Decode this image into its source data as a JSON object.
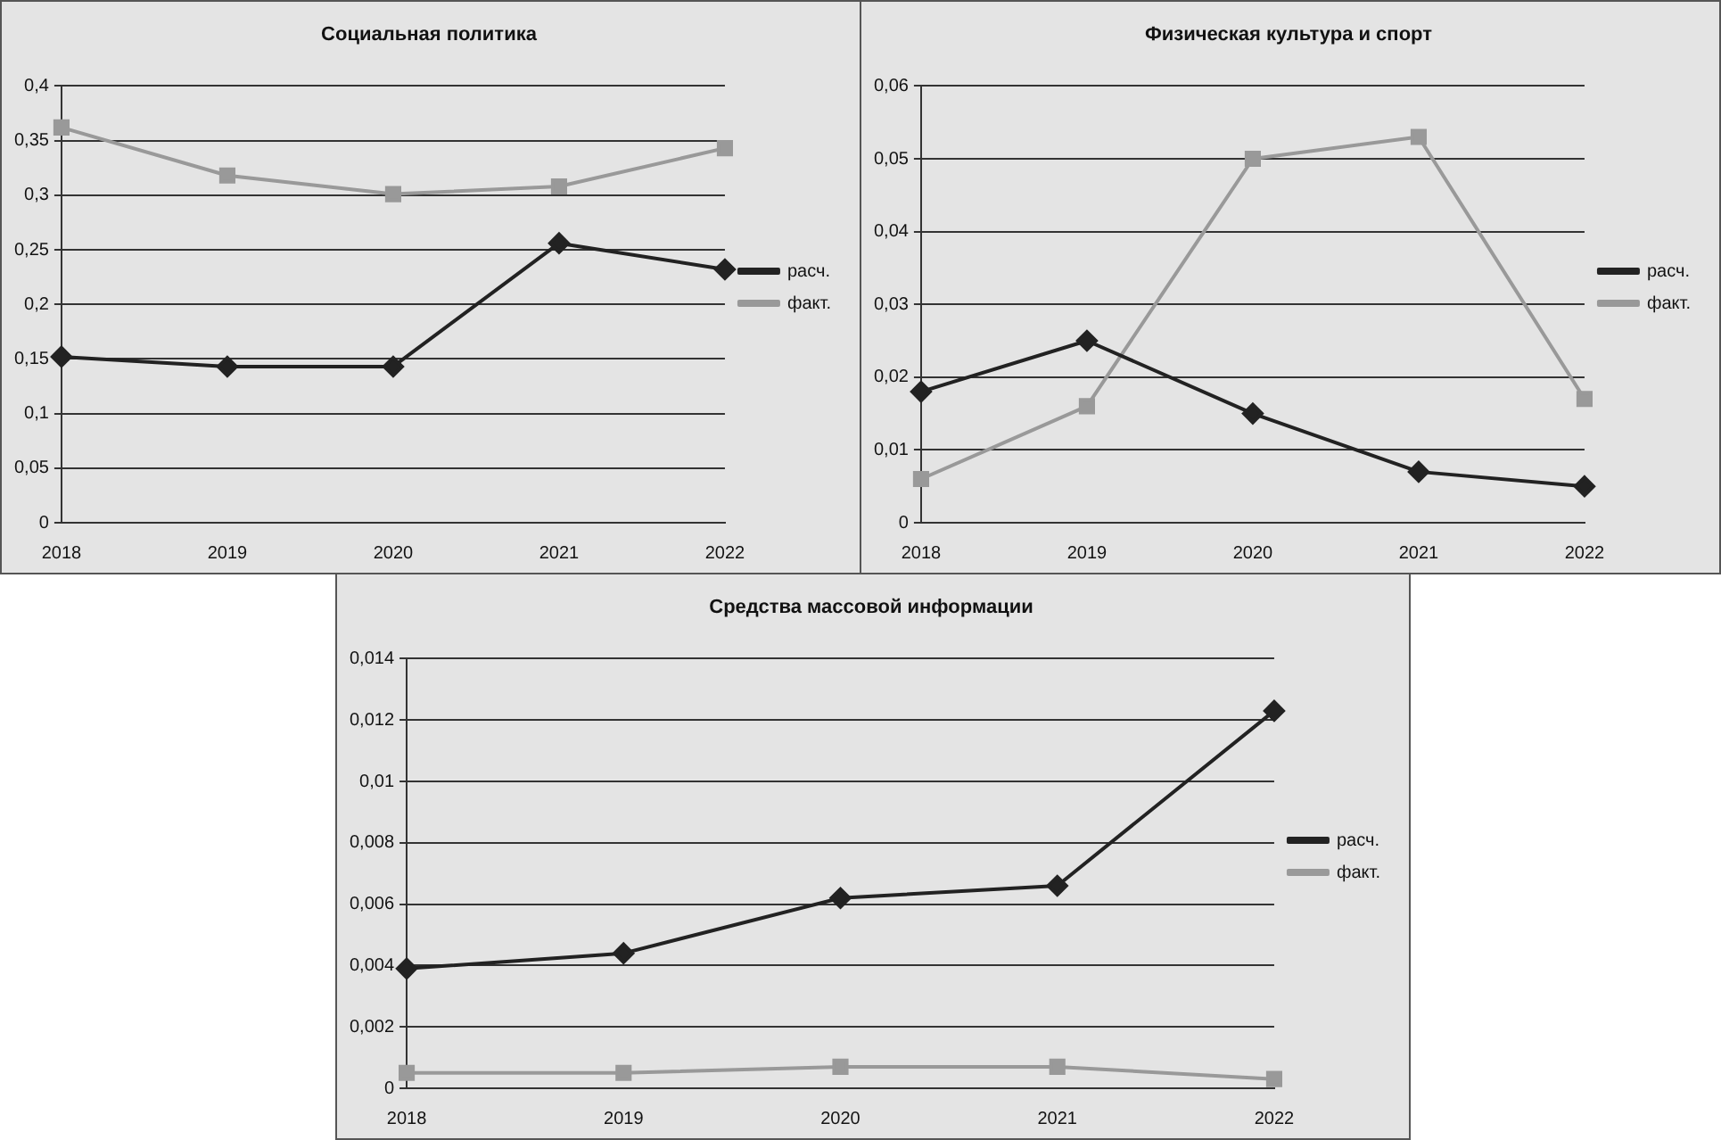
{
  "chart_data": [
    {
      "type": "line",
      "title": "Социальная политика",
      "categories": [
        "2018",
        "2019",
        "2020",
        "2021",
        "2022"
      ],
      "series": [
        {
          "name": "расч.",
          "color": "#222222",
          "marker": "diamond",
          "values": [
            0.152,
            0.143,
            0.143,
            0.256,
            0.232
          ]
        },
        {
          "name": "факт.",
          "color": "#999999",
          "marker": "square",
          "values": [
            0.362,
            0.318,
            0.301,
            0.308,
            0.343
          ]
        }
      ],
      "ylim": [
        0,
        0.4
      ],
      "yticks": [
        {
          "value": 0,
          "label": "0"
        },
        {
          "value": 0.05,
          "label": "0,05"
        },
        {
          "value": 0.1,
          "label": "0,1"
        },
        {
          "value": 0.15,
          "label": "0,15"
        },
        {
          "value": 0.2,
          "label": "0,2"
        },
        {
          "value": 0.25,
          "label": "0,25"
        },
        {
          "value": 0.3,
          "label": "0,3"
        },
        {
          "value": 0.35,
          "label": "0,35"
        },
        {
          "value": 0.4,
          "label": "0,4"
        }
      ],
      "grid": "y",
      "legend": "right"
    },
    {
      "type": "line",
      "title": "Физическая культура и спорт",
      "categories": [
        "2018",
        "2019",
        "2020",
        "2021",
        "2022"
      ],
      "series": [
        {
          "name": "расч.",
          "color": "#222222",
          "marker": "diamond",
          "values": [
            0.018,
            0.025,
            0.015,
            0.007,
            0.005
          ]
        },
        {
          "name": "факт.",
          "color": "#999999",
          "marker": "square",
          "values": [
            0.006,
            0.016,
            0.05,
            0.053,
            0.017
          ]
        }
      ],
      "ylim": [
        0,
        0.06
      ],
      "yticks": [
        {
          "value": 0,
          "label": "0"
        },
        {
          "value": 0.01,
          "label": "0,01"
        },
        {
          "value": 0.02,
          "label": "0,02"
        },
        {
          "value": 0.03,
          "label": "0,03"
        },
        {
          "value": 0.04,
          "label": "0,04"
        },
        {
          "value": 0.05,
          "label": "0,05"
        },
        {
          "value": 0.06,
          "label": "0,06"
        }
      ],
      "grid": "y",
      "legend": "right"
    },
    {
      "type": "line",
      "title": "Средства массовой информации",
      "categories": [
        "2018",
        "2019",
        "2020",
        "2021",
        "2022"
      ],
      "series": [
        {
          "name": "расч.",
          "color": "#222222",
          "marker": "diamond",
          "values": [
            0.0039,
            0.0044,
            0.0062,
            0.0066,
            0.0123
          ]
        },
        {
          "name": "факт.",
          "color": "#999999",
          "marker": "square",
          "values": [
            0.0005,
            0.0005,
            0.0007,
            0.0007,
            0.0003
          ]
        }
      ],
      "ylim": [
        0,
        0.014
      ],
      "yticks": [
        {
          "value": 0,
          "label": "0"
        },
        {
          "value": 0.002,
          "label": "0,002"
        },
        {
          "value": 0.004,
          "label": "0,004"
        },
        {
          "value": 0.006,
          "label": "0,006"
        },
        {
          "value": 0.008,
          "label": "0,008"
        },
        {
          "value": 0.01,
          "label": "0,01"
        },
        {
          "value": 0.012,
          "label": "0,012"
        },
        {
          "value": 0.014,
          "label": "0,014"
        }
      ],
      "grid": "y",
      "legend": "right"
    }
  ]
}
